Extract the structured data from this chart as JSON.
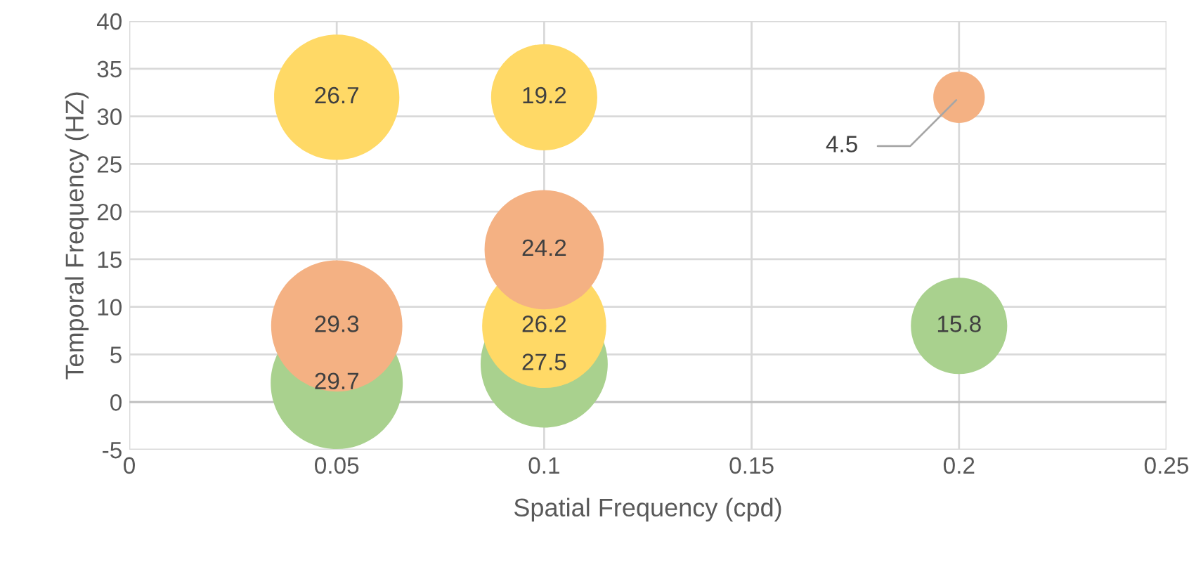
{
  "chart_data": {
    "type": "bubble",
    "xlabel": "Spatial Frequency (cpd)",
    "ylabel": "Temporal Frequency (HZ)",
    "xlim": [
      0,
      0.25
    ],
    "xticks": [
      0,
      0.05,
      0.1,
      0.15,
      0.2,
      0.25
    ],
    "ylim": [
      -5,
      40
    ],
    "yticks": [
      -5,
      0,
      5,
      10,
      15,
      20,
      25,
      30,
      35,
      40
    ],
    "grid": true,
    "legend": false,
    "series": [
      {
        "color": "#a9d18e",
        "x": [
          0.05,
          0.1,
          0.2
        ],
        "values": [
          2,
          4,
          8
        ],
        "sizes": [
          1,
          0.926,
          0.532
        ]
      },
      {
        "color": "#ffd966",
        "x": [
          0.05,
          0.1,
          0.1
        ],
        "values": [
          32,
          32,
          8
        ],
        "sizes": [
          0.899,
          0.646,
          0.882
        ]
      },
      {
        "color": "#f4b183",
        "x": [
          0.05,
          0.1,
          0.2
        ],
        "values": [
          8,
          16,
          32
        ],
        "sizes": [
          0.987,
          0.815,
          0.152
        ]
      }
    ],
    "annotations": [
      {
        "text": "29.7",
        "x": 0.05,
        "y": 2
      },
      {
        "text": "27.5",
        "x": 0.1,
        "y": 4
      },
      {
        "text": "15.8",
        "x": 0.2,
        "y": 8
      },
      {
        "text": "26.7",
        "x": 0.05,
        "y": 32
      },
      {
        "text": "19.2",
        "x": 0.1,
        "y": 32
      },
      {
        "text": "26.2",
        "x": 0.1,
        "y": 8
      },
      {
        "text": "29.3",
        "x": 0.05,
        "y": 8
      },
      {
        "text": "24.2",
        "x": 0.1,
        "y": 16
      },
      {
        "text": "4.5",
        "x": 0.2,
        "y": 32
      }
    ]
  }
}
